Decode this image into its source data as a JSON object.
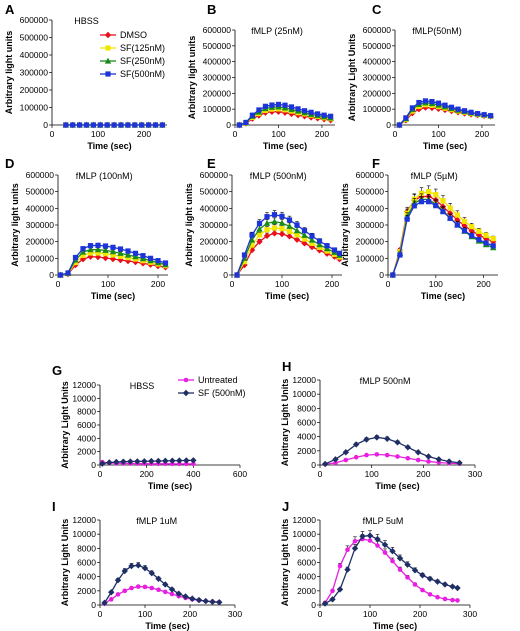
{
  "colors": {
    "DMSO": "#e8101c",
    "SF(125nM)": "#f2e600",
    "SF(250nM)": "#1a8a1a",
    "SF(500nM)": "#1d34d8",
    "Untreated": "#e81ee0",
    "SF (500nM)": "#1f2f66"
  },
  "chart_data": [
    {
      "panel": "A",
      "title": "HBSS",
      "type": "line",
      "xlabel": "Time (sec)",
      "ylabel": "Arbitrary light units",
      "xlim": [
        0,
        250
      ],
      "xticks": [
        0,
        100,
        200
      ],
      "ylim": [
        0,
        600000
      ],
      "yticks": [
        0,
        100000,
        200000,
        300000,
        400000,
        500000,
        600000
      ],
      "legend": "inside-top",
      "x": [
        30,
        45,
        60,
        75,
        90,
        105,
        120,
        135,
        150,
        165,
        180,
        195,
        210,
        225,
        240
      ],
      "series": [
        {
          "name": "DMSO",
          "values": [
            0,
            0,
            0,
            0,
            0,
            0,
            0,
            0,
            0,
            0,
            0,
            0,
            0,
            0,
            0
          ]
        },
        {
          "name": "SF(125nM)",
          "values": [
            0,
            0,
            0,
            0,
            0,
            0,
            0,
            0,
            0,
            0,
            0,
            0,
            0,
            0,
            0
          ]
        },
        {
          "name": "SF(250nM)",
          "values": [
            0,
            0,
            0,
            0,
            0,
            0,
            0,
            0,
            0,
            0,
            0,
            0,
            0,
            0,
            0
          ]
        },
        {
          "name": "SF(500nM)",
          "values": [
            0,
            0,
            0,
            0,
            0,
            0,
            0,
            0,
            0,
            0,
            0,
            0,
            0,
            0,
            0
          ]
        }
      ]
    },
    {
      "panel": "B",
      "title": "fMLP (25nM)",
      "type": "line",
      "xlabel": "Time (sec)",
      "ylabel": "Arbitrary light units",
      "xlim": [
        0,
        230
      ],
      "xticks": [
        0,
        100,
        200
      ],
      "ylim": [
        0,
        600000
      ],
      "yticks": [
        0,
        100000,
        200000,
        300000,
        400000,
        500000,
        600000
      ],
      "x": [
        10,
        25,
        40,
        55,
        70,
        85,
        100,
        115,
        130,
        145,
        160,
        175,
        190,
        205,
        220
      ],
      "series": [
        {
          "name": "DMSO",
          "values": [
            0,
            10000,
            40000,
            60000,
            78000,
            84000,
            84000,
            78000,
            70000,
            62000,
            55000,
            48000,
            42000,
            36000,
            30000
          ]
        },
        {
          "name": "SF(125nM)",
          "values": [
            0,
            12000,
            48000,
            72000,
            92000,
            100000,
            102000,
            96000,
            88000,
            78000,
            70000,
            62000,
            54000,
            46000,
            40000
          ]
        },
        {
          "name": "SF(250nM)",
          "values": [
            0,
            14000,
            55000,
            82000,
            104000,
            112000,
            114000,
            108000,
            98000,
            88000,
            78000,
            68000,
            60000,
            52000,
            45000
          ]
        },
        {
          "name": "SF(500nM)",
          "values": [
            0,
            16000,
            62000,
            95000,
            118000,
            126000,
            130000,
            125000,
            114000,
            102000,
            90000,
            80000,
            70000,
            62000,
            55000
          ]
        }
      ]
    },
    {
      "panel": "C",
      "title": "fMLP(50nM)",
      "type": "line",
      "xlabel": "Time (sec)",
      "ylabel": "Arbitrary Light Units",
      "xlim": [
        0,
        230
      ],
      "xticks": [
        0,
        100,
        200
      ],
      "ylim": [
        0,
        600000
      ],
      "yticks": [
        0,
        100000,
        200000,
        300000,
        400000,
        500000,
        600000
      ],
      "x": [
        10,
        25,
        40,
        55,
        70,
        85,
        100,
        115,
        130,
        145,
        160,
        175,
        190,
        205,
        220
      ],
      "series": [
        {
          "name": "DMSO",
          "values": [
            0,
            30000,
            75000,
            100000,
            110000,
            108000,
            102000,
            95000,
            88000,
            80000,
            73000,
            67000,
            62000,
            58000,
            54000
          ]
        },
        {
          "name": "SF(125nM)",
          "values": [
            0,
            35000,
            88000,
            118000,
            128000,
            124000,
            116000,
            106000,
            97000,
            88000,
            80000,
            72000,
            66000,
            60000,
            55000
          ]
        },
        {
          "name": "SF(250nM)",
          "values": [
            0,
            40000,
            98000,
            130000,
            140000,
            136000,
            126000,
            115000,
            104000,
            94000,
            85000,
            77000,
            70000,
            64000,
            58000
          ]
        },
        {
          "name": "SF(500nM)",
          "values": [
            0,
            45000,
            108000,
            142000,
            152000,
            148000,
            138000,
            125000,
            112000,
            100000,
            90000,
            80000,
            72000,
            65000,
            59000
          ]
        }
      ]
    },
    {
      "panel": "D",
      "title": "fMLP (100nM)",
      "type": "line",
      "xlabel": "Time (sec)",
      "ylabel": "Arbitrary light units",
      "xlim": [
        0,
        220
      ],
      "xticks": [
        0,
        100,
        200
      ],
      "ylim": [
        0,
        600000
      ],
      "yticks": [
        0,
        100000,
        200000,
        300000,
        400000,
        500000,
        600000
      ],
      "x": [
        5,
        20,
        35,
        50,
        65,
        80,
        95,
        110,
        125,
        140,
        155,
        170,
        185,
        200,
        215
      ],
      "series": [
        {
          "name": "DMSO",
          "values": [
            0,
            5000,
            60000,
            95000,
            110000,
            108000,
            102000,
            96000,
            90000,
            84000,
            78000,
            70000,
            62000,
            54000,
            46000
          ]
        },
        {
          "name": "SF(125nM)",
          "values": [
            0,
            8000,
            75000,
            118000,
            132000,
            132000,
            128000,
            120000,
            112000,
            104000,
            96000,
            86000,
            76000,
            66000,
            56000
          ]
        },
        {
          "name": "SF(250nM)",
          "values": [
            0,
            10000,
            90000,
            138000,
            152000,
            152000,
            148000,
            140000,
            130000,
            120000,
            110000,
            98000,
            86000,
            74000,
            62000
          ]
        },
        {
          "name": "SF(500nM)",
          "values": [
            0,
            12000,
            105000,
            158000,
            176000,
            178000,
            174000,
            166000,
            156000,
            144000,
            130000,
            116000,
            100000,
            86000,
            72000
          ]
        }
      ]
    },
    {
      "panel": "E",
      "title": "fMLP (500nM)",
      "type": "line",
      "xlabel": "Time (sec)",
      "ylabel": "Arbitrary light units",
      "xlim": [
        0,
        220
      ],
      "xticks": [
        0,
        100,
        200
      ],
      "ylim": [
        0,
        600000
      ],
      "yticks": [
        0,
        100000,
        200000,
        300000,
        400000,
        500000,
        600000
      ],
      "x": [
        10,
        25,
        40,
        55,
        70,
        85,
        100,
        115,
        130,
        145,
        160,
        175,
        190,
        205,
        215
      ],
      "series": [
        {
          "name": "DMSO",
          "values": [
            0,
            60000,
            150000,
            200000,
            235000,
            250000,
            246000,
            232000,
            212000,
            190000,
            168000,
            148000,
            128000,
            110000,
            95000
          ]
        },
        {
          "name": "SF(125nM)",
          "values": [
            0,
            80000,
            180000,
            240000,
            272000,
            282000,
            278000,
            262000,
            240000,
            216000,
            190000,
            166000,
            144000,
            124000,
            108000
          ]
        },
        {
          "name": "SF(250nM)",
          "values": [
            0,
            100000,
            210000,
            275000,
            310000,
            320000,
            312000,
            292000,
            266000,
            238000,
            210000,
            182000,
            158000,
            136000,
            118000
          ]
        },
        {
          "name": "SF(500nM)",
          "values": [
            0,
            120000,
            240000,
            310000,
            350000,
            362000,
            352000,
            330000,
            300000,
            266000,
            234000,
            204000,
            176000,
            150000,
            130000
          ]
        }
      ]
    },
    {
      "panel": "F",
      "title": "fMLP (5µM)",
      "type": "line",
      "xlabel": "Time (sec)",
      "ylabel": "Arbitrary light units",
      "xlim": [
        0,
        230
      ],
      "xticks": [
        0,
        100,
        200
      ],
      "ylim": [
        0,
        600000
      ],
      "yticks": [
        0,
        100000,
        200000,
        300000,
        400000,
        500000,
        600000
      ],
      "x": [
        10,
        25,
        40,
        55,
        70,
        85,
        100,
        115,
        130,
        145,
        160,
        175,
        190,
        205,
        220
      ],
      "series": [
        {
          "name": "DMSO",
          "values": [
            0,
            150000,
            380000,
            450000,
            470000,
            472000,
            450000,
            410000,
            370000,
            330000,
            295000,
            265000,
            240000,
            218000,
            200000
          ]
        },
        {
          "name": "SF(125nM)",
          "values": [
            0,
            140000,
            370000,
            455000,
            490000,
            500000,
            482000,
            445000,
            402000,
            360000,
            322000,
            290000,
            262000,
            238000,
            218000
          ]
        },
        {
          "name": "SF(250nM)",
          "values": [
            0,
            130000,
            350000,
            430000,
            455000,
            452000,
            425000,
            385000,
            342000,
            300000,
            262000,
            230000,
            204000,
            182000,
            164000
          ]
        },
        {
          "name": "SF(500nM)",
          "values": [
            0,
            120000,
            335000,
            415000,
            440000,
            440000,
            416000,
            380000,
            340000,
            300000,
            266000,
            236000,
            212000,
            192000,
            175000
          ]
        }
      ]
    },
    {
      "panel": "G",
      "title": "HBSS",
      "type": "line",
      "xlabel": "Time (sec)",
      "ylabel": "Arbitrary Light Units",
      "xlim": [
        0,
        600
      ],
      "xticks": [
        0,
        200,
        400,
        600
      ],
      "ylim": [
        0,
        12000
      ],
      "yticks": [
        0,
        2000,
        4000,
        6000,
        8000,
        10000,
        12000
      ],
      "legend": "inside-top",
      "x": [
        10,
        40,
        70,
        100,
        130,
        160,
        190,
        220,
        250,
        280,
        310,
        340,
        370,
        400
      ],
      "series": [
        {
          "name": "Untreated",
          "values": [
            420,
            300,
            260,
            240,
            220,
            210,
            200,
            190,
            185,
            180,
            175,
            170,
            165,
            160
          ]
        },
        {
          "name": "SF (500nM)",
          "values": [
            200,
            380,
            450,
            500,
            520,
            540,
            560,
            580,
            600,
            620,
            640,
            660,
            680,
            700
          ]
        }
      ]
    },
    {
      "panel": "H",
      "title": "fMLP 500nM",
      "type": "line",
      "xlabel": "Time (sec)",
      "ylabel": "Arbitrary Light Units",
      "xlim": [
        0,
        300
      ],
      "xticks": [
        0,
        100,
        200,
        300
      ],
      "ylim": [
        0,
        12000
      ],
      "yticks": [
        0,
        2000,
        4000,
        6000,
        8000,
        10000,
        12000
      ],
      "x": [
        10,
        30,
        50,
        70,
        90,
        110,
        130,
        150,
        170,
        190,
        210,
        230,
        250,
        270
      ],
      "series": [
        {
          "name": "Untreated",
          "values": [
            100,
            300,
            700,
            1100,
            1400,
            1500,
            1400,
            1200,
            950,
            700,
            500,
            350,
            250,
            200
          ]
        },
        {
          "name": "SF (500nM)",
          "values": [
            150,
            800,
            1800,
            2900,
            3600,
            3900,
            3700,
            3200,
            2500,
            1800,
            1200,
            800,
            500,
            300
          ]
        }
      ]
    },
    {
      "panel": "I",
      "title": "fMLP 1uM",
      "type": "line",
      "xlabel": "Time (sec)",
      "ylabel": "Arbitrary Light Units",
      "xlim": [
        0,
        300
      ],
      "xticks": [
        0,
        100,
        200,
        300
      ],
      "ylim": [
        0,
        12000
      ],
      "yticks": [
        0,
        2000,
        4000,
        6000,
        8000,
        10000,
        12000
      ],
      "x": [
        10,
        25,
        40,
        55,
        70,
        85,
        100,
        115,
        130,
        145,
        160,
        175,
        190,
        205,
        220,
        235,
        250,
        265
      ],
      "series": [
        {
          "name": "Untreated",
          "values": [
            200,
            800,
            1500,
            2000,
            2400,
            2600,
            2550,
            2400,
            2150,
            1850,
            1550,
            1250,
            1000,
            800,
            650,
            550,
            480,
            420
          ]
        },
        {
          "name": "SF (500nM)",
          "values": [
            300,
            1800,
            3500,
            4800,
            5500,
            5600,
            5200,
            4500,
            3700,
            2900,
            2200,
            1600,
            1200,
            900,
            700,
            550,
            450,
            380
          ]
        }
      ]
    },
    {
      "panel": "J",
      "title": "fMLP 5uM",
      "type": "line",
      "xlabel": "Time (sec)",
      "ylabel": "Arbitrary Light Units",
      "xlim": [
        0,
        300
      ],
      "xticks": [
        0,
        100,
        200,
        300
      ],
      "ylim": [
        0,
        12000
      ],
      "yticks": [
        0,
        2000,
        4000,
        6000,
        8000,
        10000,
        12000
      ],
      "x": [
        10,
        25,
        40,
        55,
        70,
        85,
        100,
        115,
        130,
        145,
        160,
        175,
        190,
        205,
        220,
        235,
        250,
        265,
        275
      ],
      "series": [
        {
          "name": "Untreated",
          "values": [
            300,
            2000,
            5500,
            7800,
            9000,
            9300,
            9100,
            8400,
            7400,
            6200,
            5000,
            3900,
            2900,
            2100,
            1500,
            1100,
            850,
            700,
            650
          ]
        },
        {
          "name": "SF (500nM)",
          "values": [
            200,
            800,
            2200,
            5000,
            8000,
            9700,
            9800,
            9300,
            8500,
            7600,
            6600,
            5700,
            4900,
            4200,
            3700,
            3300,
            2900,
            2600,
            2400
          ]
        }
      ]
    }
  ]
}
